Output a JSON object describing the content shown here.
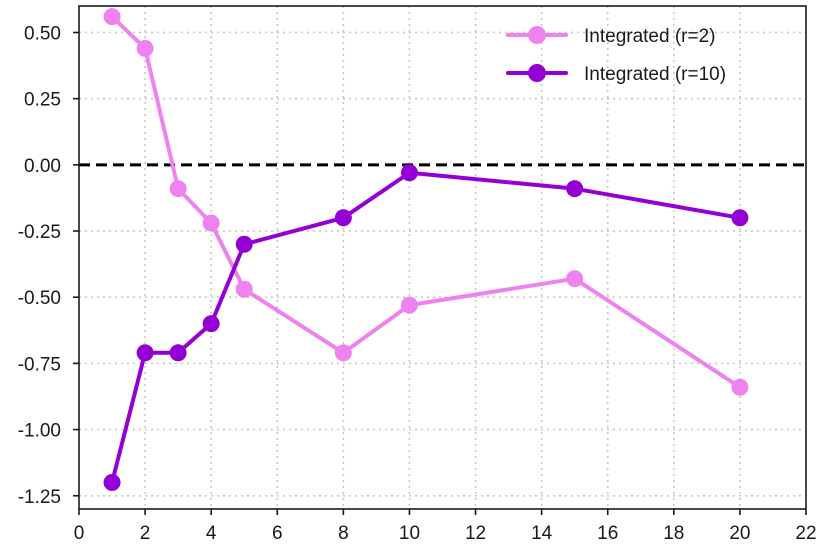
{
  "chart_data": {
    "type": "line",
    "title": "",
    "xlabel": "",
    "ylabel": "",
    "xlim": [
      0,
      22
    ],
    "ylim": [
      -1.3,
      0.6
    ],
    "x_ticks": [
      0,
      2,
      4,
      6,
      8,
      10,
      12,
      14,
      16,
      18,
      20,
      22
    ],
    "y_ticks": [
      0.5,
      0.25,
      0.0,
      -0.25,
      -0.5,
      -0.75,
      -1.0,
      -1.25
    ],
    "x_tick_labels": [
      "0",
      "2",
      "4",
      "6",
      "8",
      "10",
      "12",
      "14",
      "16",
      "18",
      "20",
      "22"
    ],
    "y_tick_labels": [
      "0.50",
      "0.25",
      "0.00",
      "-0.25",
      "-0.50",
      "-0.75",
      "-1.00",
      "-1.25"
    ],
    "grid": true,
    "reference_line": {
      "y": 0.0,
      "style": "dashed",
      "color": "#000000"
    },
    "legend_position": "top-right",
    "series": [
      {
        "name": "Integrated (r=2)",
        "color": "#ee82ee",
        "x": [
          1,
          2,
          3,
          4,
          5,
          8,
          10,
          15,
          20
        ],
        "y": [
          0.56,
          0.44,
          -0.09,
          -0.22,
          -0.47,
          -0.71,
          -0.53,
          -0.43,
          -0.84
        ]
      },
      {
        "name": "Integrated (r=10)",
        "color": "#9400d3",
        "x": [
          1,
          2,
          3,
          4,
          5,
          8,
          10,
          15,
          20
        ],
        "y": [
          -1.2,
          -0.71,
          -0.71,
          -0.6,
          -0.3,
          -0.2,
          -0.03,
          -0.09,
          -0.2
        ]
      }
    ]
  }
}
